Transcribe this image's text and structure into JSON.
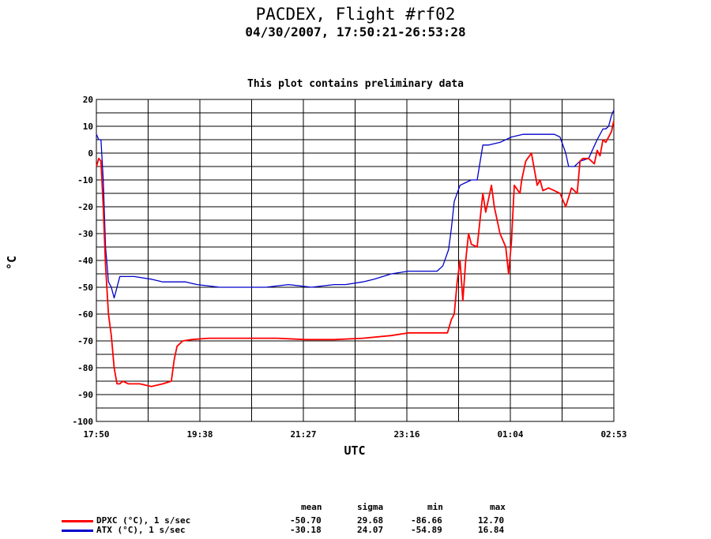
{
  "header": {
    "title": "PACDEX, Flight #rf02",
    "subtitle": "04/30/2007, 17:50:21-26:53:28",
    "note": "This plot contains preliminary data"
  },
  "chart_data": {
    "type": "line",
    "xlabel": "UTC",
    "ylabel": "°C",
    "x_tick_labels": [
      "17:50",
      "19:38",
      "21:27",
      "23:16",
      "01:04",
      "02:53"
    ],
    "x_range_hours": [
      17.8392,
      26.8911
    ],
    "ylim": [
      -100,
      20
    ],
    "y_ticks": [
      -100,
      -90,
      -80,
      -70,
      -60,
      -50,
      -40,
      -30,
      -20,
      -10,
      0,
      10,
      20
    ],
    "grid": true,
    "legend_placement": "bottom-left",
    "series": [
      {
        "name": "DPXC (°C), 1 s/sec",
        "color": "#ff0000",
        "stats": {
          "mean": "-50.70",
          "sigma": "29.68",
          "min": "-86.66",
          "max": "12.70"
        },
        "x_hours": [
          17.84,
          17.88,
          17.92,
          17.96,
          18.0,
          18.05,
          18.1,
          18.15,
          18.2,
          18.25,
          18.3,
          18.4,
          18.5,
          18.6,
          18.8,
          19.0,
          19.15,
          19.2,
          19.25,
          19.35,
          19.5,
          19.8,
          20.2,
          20.6,
          21.0,
          21.5,
          22.0,
          22.5,
          23.0,
          23.3,
          23.6,
          23.85,
          23.98,
          24.05,
          24.1,
          24.15,
          24.2,
          24.25,
          24.3,
          24.35,
          24.4,
          24.5,
          24.55,
          24.6,
          24.65,
          24.7,
          24.75,
          24.8,
          24.9,
          25.0,
          25.05,
          25.1,
          25.15,
          25.25,
          25.28,
          25.35,
          25.45,
          25.55,
          25.6,
          25.65,
          25.75,
          25.85,
          25.95,
          26.05,
          26.15,
          26.25,
          26.3,
          26.35,
          26.45,
          26.55,
          26.6,
          26.65,
          26.7,
          26.75,
          26.8,
          26.85,
          26.89
        ],
        "values": [
          -5,
          -2,
          -3,
          -20,
          -42,
          -60,
          -68,
          -80,
          -86,
          -86,
          -85,
          -86,
          -86,
          -86,
          -87,
          -86,
          -85,
          -77,
          -72,
          -70,
          -69.5,
          -69,
          -69,
          -69,
          -69,
          -69.5,
          -69.5,
          -69,
          -68,
          -67,
          -67,
          -67,
          -67,
          -62,
          -60,
          -48,
          -40,
          -55,
          -40,
          -30,
          -34,
          -35,
          -25,
          -15,
          -22,
          -17,
          -12,
          -20,
          -30,
          -35,
          -45,
          -33,
          -12,
          -15,
          -10,
          -3,
          0,
          -12,
          -10,
          -14,
          -13,
          -14,
          -15,
          -20,
          -13,
          -15,
          -3,
          -2,
          -2,
          -4,
          1,
          -1,
          5,
          4,
          6,
          8,
          12
        ],
        "unit": "°C"
      },
      {
        "name": "ATX (°C), 1 s/sec",
        "color": "#0000cc",
        "stats": {
          "mean": "-30.18",
          "sigma": "24.07",
          "min": "-54.89",
          "max": "16.84"
        },
        "x_hours": [
          17.84,
          17.88,
          17.92,
          17.96,
          18.0,
          18.05,
          18.1,
          18.15,
          18.2,
          18.25,
          18.3,
          18.5,
          18.8,
          19.0,
          19.2,
          19.4,
          19.6,
          20.0,
          20.4,
          20.8,
          21.2,
          21.6,
          22.0,
          22.2,
          22.5,
          22.7,
          23.0,
          23.3,
          23.6,
          23.8,
          23.9,
          24.0,
          24.05,
          24.1,
          24.2,
          24.3,
          24.4,
          24.5,
          24.6,
          24.65,
          24.7,
          24.9,
          25.1,
          25.3,
          25.5,
          25.7,
          25.85,
          25.95,
          26.05,
          26.1,
          26.2,
          26.3,
          26.45,
          26.6,
          26.7,
          26.75,
          26.8,
          26.85,
          26.89
        ],
        "values": [
          7,
          5,
          5,
          -10,
          -35,
          -48,
          -50,
          -54,
          -50,
          -46,
          -46,
          -46,
          -47,
          -48,
          -48,
          -48,
          -49,
          -50,
          -50,
          -50,
          -49,
          -50,
          -49,
          -49,
          -48,
          -47,
          -45,
          -44,
          -44,
          -44,
          -42,
          -36,
          -28,
          -18,
          -12,
          -11,
          -10,
          -10,
          3,
          3,
          3,
          4,
          6,
          7,
          7,
          7,
          7,
          6,
          0,
          -5,
          -5,
          -3,
          -2,
          5,
          9,
          9,
          10,
          14,
          16
        ],
        "unit": "°C"
      }
    ]
  },
  "legend": {
    "columns": [
      "mean",
      "sigma",
      "min",
      "max"
    ]
  }
}
